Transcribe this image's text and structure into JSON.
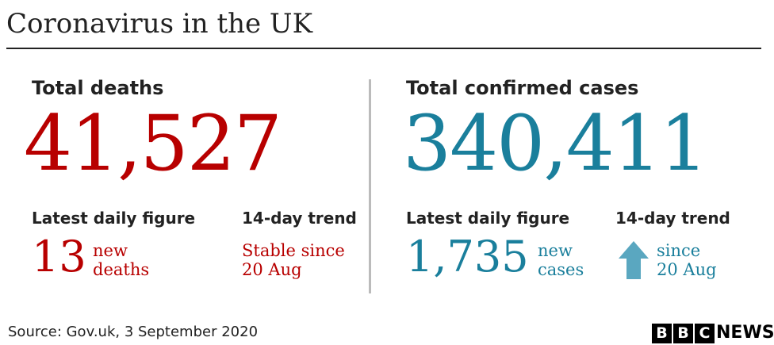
{
  "header": {
    "title": "Coronavirus in the UK"
  },
  "panels": [
    {
      "heading": "Total deaths",
      "total": "41,527",
      "latest_label": "Latest daily figure",
      "latest_value": "13",
      "latest_unit": [
        "new",
        "deaths"
      ],
      "trend_label": "14-day trend",
      "trend_text": [
        "Stable since",
        "20 Aug"
      ]
    },
    {
      "heading": "Total confirmed cases",
      "total": "340,411",
      "latest_label": "Latest daily figure",
      "latest_value": "1,735",
      "latest_unit": [
        "new",
        "cases"
      ],
      "trend_label": "14-day trend",
      "trend_text": [
        "since",
        "20 Aug"
      ]
    }
  ],
  "footer": {
    "source": "Source: Gov.uk, 3 September 2020",
    "logo": [
      "B",
      "B",
      "C",
      "NEWS"
    ]
  }
}
